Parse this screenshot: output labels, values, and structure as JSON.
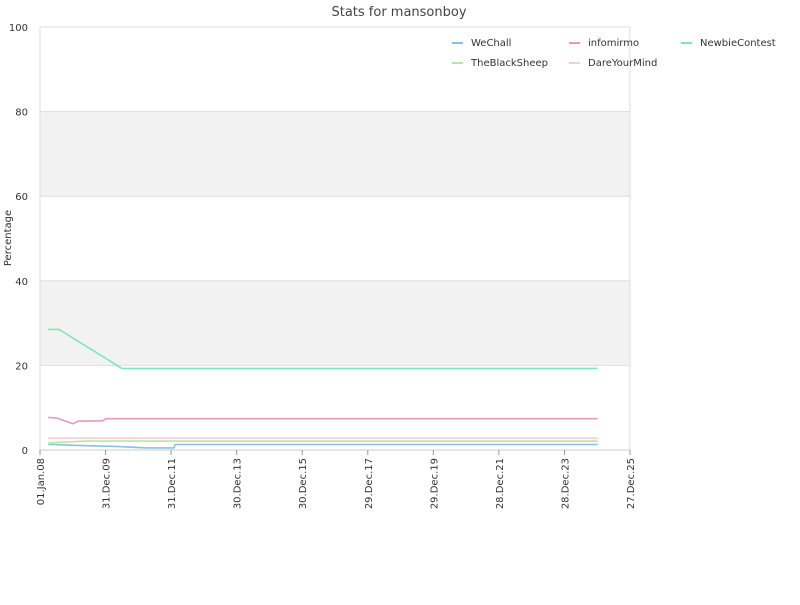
{
  "chart_data": {
    "type": "line",
    "title": "Stats for mansonboy",
    "ylabel": "Percentage",
    "xlabel": "",
    "ylim": [
      0,
      100
    ],
    "yticks": [
      0,
      20,
      40,
      60,
      80,
      100
    ],
    "xlim": [
      "2008-01-01",
      "2025-12-27"
    ],
    "xticks": [
      {
        "label": "01.Jan.08",
        "date": "2008-01-01"
      },
      {
        "label": "31.Dec.09",
        "date": "2009-12-31"
      },
      {
        "label": "31.Dec.11",
        "date": "2011-12-31"
      },
      {
        "label": "30.Dec.13",
        "date": "2013-12-30"
      },
      {
        "label": "30.Dec.15",
        "date": "2015-12-30"
      },
      {
        "label": "29.Dec.17",
        "date": "2017-12-29"
      },
      {
        "label": "29.Dec.19",
        "date": "2019-12-29"
      },
      {
        "label": "28.Dec.21",
        "date": "2021-12-28"
      },
      {
        "label": "28.Dec.23",
        "date": "2023-12-28"
      },
      {
        "label": "27.Dec.25",
        "date": "2025-12-27"
      }
    ],
    "grid": true,
    "alternating_bands": true,
    "legend_position": "top-right",
    "series": [
      {
        "name": "WeChall",
        "color": "#88c0e6",
        "points": [
          [
            "2008-04-01",
            1.3
          ],
          [
            "2008-06-01",
            1.3
          ],
          [
            "2009-01-01",
            1.1
          ],
          [
            "2010-06-01",
            0.8
          ],
          [
            "2011-04-01",
            0.5
          ],
          [
            "2012-02-01",
            0.5
          ],
          [
            "2012-02-15",
            1.3
          ],
          [
            "2025-01-01",
            1.3
          ]
        ]
      },
      {
        "name": "infomirmo",
        "color": "#e89ab8",
        "points": [
          [
            "2008-04-01",
            7.7
          ],
          [
            "2008-07-01",
            7.6
          ],
          [
            "2009-01-01",
            6.2
          ],
          [
            "2009-03-01",
            6.8
          ],
          [
            "2009-12-01",
            6.9
          ],
          [
            "2010-01-01",
            7.4
          ],
          [
            "2025-01-01",
            7.4
          ]
        ]
      },
      {
        "name": "NewbieContest",
        "color": "#7fe6c0",
        "points": [
          [
            "2008-04-01",
            28.5
          ],
          [
            "2008-08-01",
            28.5
          ],
          [
            "2010-07-01",
            19.3
          ],
          [
            "2025-01-01",
            19.3
          ]
        ]
      },
      {
        "name": "TheBlackSheep",
        "color": "#b8e8a0",
        "points": [
          [
            "2008-04-01",
            1.7
          ],
          [
            "2009-06-01",
            2.1
          ],
          [
            "2025-01-01",
            2.1
          ]
        ]
      },
      {
        "name": "DareYourMind",
        "color": "#f4cdd0",
        "points": [
          [
            "2008-04-01",
            2.8
          ],
          [
            "2025-01-01",
            2.8
          ]
        ]
      }
    ]
  }
}
